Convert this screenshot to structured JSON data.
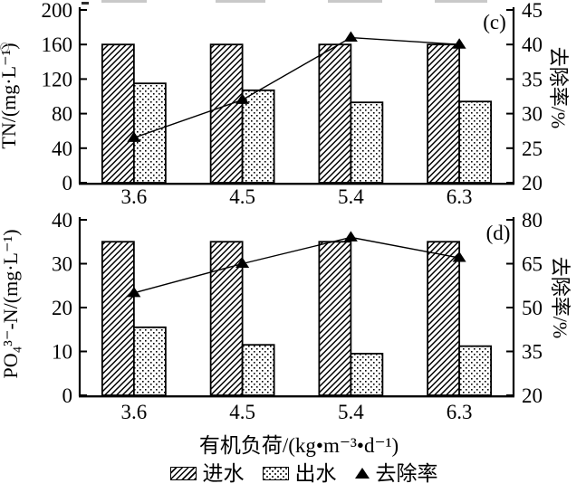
{
  "figure": {
    "xlabel": "有机负荷/(kg•m⁻³•d⁻¹)",
    "legend": [
      {
        "label": "进水",
        "swatch": "hatch"
      },
      {
        "label": "出水",
        "swatch": "dots"
      },
      {
        "label": "去除率",
        "swatch": "triangle"
      }
    ]
  },
  "chart_data": [
    {
      "type": "bar",
      "panel_label": "(c)",
      "categories": [
        "3.6",
        "4.5",
        "5.4",
        "6.3"
      ],
      "series": [
        {
          "name": "进水",
          "type": "bar",
          "pattern": "hatch",
          "axis": "left",
          "values": [
            160,
            160,
            160,
            160
          ]
        },
        {
          "name": "出水",
          "type": "bar",
          "pattern": "dots",
          "axis": "left",
          "values": [
            115,
            107,
            93,
            94
          ]
        },
        {
          "name": "去除率",
          "type": "line",
          "marker": "triangle",
          "axis": "right",
          "values": [
            26.5,
            32,
            41,
            40
          ]
        }
      ],
      "ylabel_left": "TN/(mg·L⁻¹)",
      "ylabel_right": "去除率/%",
      "ylim_left": [
        0,
        200
      ],
      "yticks_left": [
        0,
        40,
        80,
        120,
        160,
        200
      ],
      "ylim_right": [
        20,
        45
      ],
      "yticks_right": [
        20,
        25,
        30,
        35,
        40,
        45
      ],
      "grid": "off",
      "legend_position": "below-figure"
    },
    {
      "type": "bar",
      "panel_label": "(d)",
      "categories": [
        "3.6",
        "4.5",
        "5.4",
        "6.3"
      ],
      "series": [
        {
          "name": "进水",
          "type": "bar",
          "pattern": "hatch",
          "axis": "left",
          "values": [
            35,
            35,
            35,
            35
          ]
        },
        {
          "name": "出水",
          "type": "bar",
          "pattern": "dots",
          "axis": "left",
          "values": [
            15.5,
            11.5,
            9.5,
            11.2
          ]
        },
        {
          "name": "去除率",
          "type": "line",
          "marker": "triangle",
          "axis": "right",
          "values": [
            55,
            65,
            74,
            67
          ]
        }
      ],
      "ylabel_left": "PO₄³⁻-N/(mg·L⁻¹)",
      "ylabel_right": "去除率/%",
      "ylim_left": [
        0,
        40
      ],
      "yticks_left": [
        0,
        10,
        20,
        30,
        40
      ],
      "ylim_right": [
        20,
        80
      ],
      "yticks_right": [
        20,
        35,
        50,
        65,
        80
      ],
      "grid": "off",
      "legend_position": "below-figure"
    }
  ]
}
